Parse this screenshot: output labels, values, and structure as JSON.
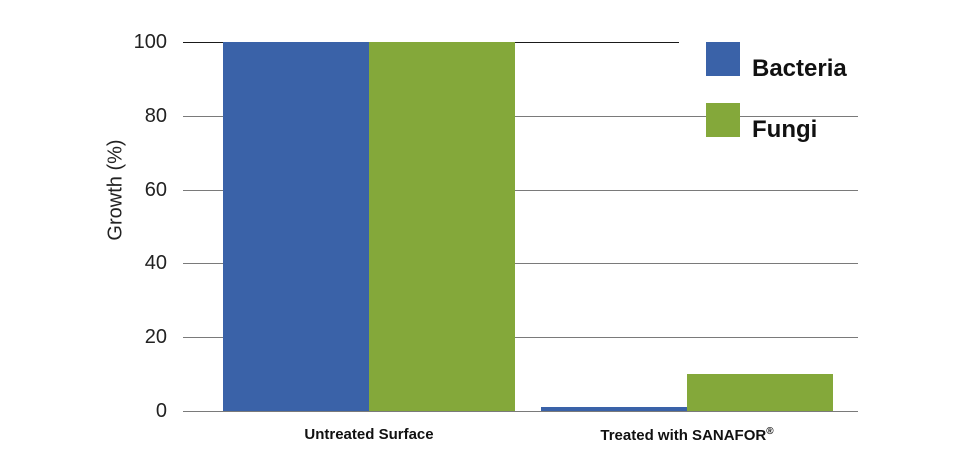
{
  "chart_data": {
    "type": "bar",
    "title": "",
    "xlabel": "",
    "ylabel": "Growth (%)",
    "ylim": [
      0,
      100
    ],
    "yticks": [
      "0",
      "20",
      "40",
      "60",
      "80",
      "100"
    ],
    "categories": [
      "Untreated Surface",
      "Treated with SANAFOR®"
    ],
    "series": [
      {
        "name": "Bacteria",
        "color": "#3a62a8",
        "values": [
          100,
          1
        ]
      },
      {
        "name": "Fungi",
        "color": "#84a83a",
        "values": [
          100,
          10
        ]
      }
    ],
    "grid": true,
    "legend_position": "top-right"
  },
  "legend": {
    "items": [
      {
        "label": "Bacteria",
        "color": "#3a62a8"
      },
      {
        "label": "Fungi",
        "color": "#84a83a"
      }
    ]
  }
}
